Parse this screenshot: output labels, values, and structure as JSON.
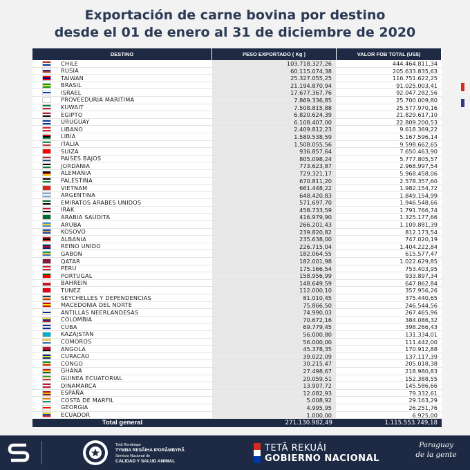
{
  "title": {
    "line1": "Exportación de carne bovina por destino",
    "line2": "desde el 01 de enero al 31 de diciembre de 2020"
  },
  "table": {
    "headers": [
      "DESTINO",
      "PESO EXPORTADO ( Kg )",
      "VALOR FOB TOTAL (US$)"
    ],
    "rows": [
      {
        "destino": "CHILE",
        "peso": "103.718.327,26",
        "valor": "444.464.811,34",
        "flag": [
          "#d52b1e",
          "#ffffff",
          "#0039a6"
        ]
      },
      {
        "destino": "RUSIA",
        "peso": "60.115.074,38",
        "valor": "205.633.835,63",
        "flag": [
          "#ffffff",
          "#0039a6",
          "#d52b1e"
        ]
      },
      {
        "destino": "TAIWAN",
        "peso": "25.327.055,25",
        "valor": "116.751.622,25",
        "flag": [
          "#fe0000",
          "#000095",
          "#fe0000"
        ]
      },
      {
        "destino": "BRASIL",
        "peso": "21.194.870,94",
        "valor": "91.025.003,41",
        "flag": [
          "#009c3b",
          "#ffdf00",
          "#009c3b"
        ]
      },
      {
        "destino": "ISRAEL",
        "peso": "17.677.367,76",
        "valor": "92.047.282,56",
        "flag": [
          "#ffffff",
          "#0038b8",
          "#ffffff"
        ]
      },
      {
        "destino": "PROVEEDURIA MARITIMA",
        "peso": "7.869.336,85",
        "valor": "25.700.009,80",
        "flag": [
          "#ffffff",
          "#ffffff",
          "#ffffff"
        ]
      },
      {
        "destino": "KUWAIT",
        "peso": "7.508.815,88",
        "valor": "25.577.970,16",
        "flag": [
          "#007a3d",
          "#ffffff",
          "#ce1126"
        ]
      },
      {
        "destino": "EGIPTO",
        "peso": "6.820.624,39",
        "valor": "21.829.617,10",
        "flag": [
          "#ce1126",
          "#ffffff",
          "#000000"
        ]
      },
      {
        "destino": "URUGUAY",
        "peso": "6.108.407,00",
        "valor": "22.809.200,53",
        "flag": [
          "#0038a8",
          "#ffffff",
          "#0038a8"
        ]
      },
      {
        "destino": "LIBANO",
        "peso": "2.409.812,23",
        "valor": "9.618.369,22",
        "flag": [
          "#ed1c24",
          "#ffffff",
          "#ed1c24"
        ]
      },
      {
        "destino": "LIBIA",
        "peso": "1.589.538,59",
        "valor": "5.167.596,14",
        "flag": [
          "#e70013",
          "#000000",
          "#239e46"
        ]
      },
      {
        "destino": "ITALIA",
        "peso": "1.508.055,56",
        "valor": "9.598.662,65",
        "flag": [
          "#009246",
          "#ffffff",
          "#ce2b37"
        ]
      },
      {
        "destino": "SUIZA",
        "peso": "936.857,64",
        "valor": "7.650.463,90",
        "flag": [
          "#ff0000",
          "#ff0000",
          "#ff0000"
        ]
      },
      {
        "destino": "PAISES BAJOS",
        "peso": "805.098,24",
        "valor": "5.777.805,57",
        "flag": [
          "#ae1c28",
          "#ffffff",
          "#21468b"
        ]
      },
      {
        "destino": "JORDANIA",
        "peso": "773.623,87",
        "valor": "2.968.997,54",
        "flag": [
          "#000000",
          "#ffffff",
          "#007a3d"
        ]
      },
      {
        "destino": "ALEMANIA",
        "peso": "729.321,17",
        "valor": "5.968.458,06",
        "flag": [
          "#000000",
          "#dd0000",
          "#ffce00"
        ]
      },
      {
        "destino": "PALESTINA",
        "peso": "670.811,20",
        "valor": "2.578.357,60",
        "flag": [
          "#000000",
          "#ffffff",
          "#009736"
        ]
      },
      {
        "destino": "VIETNAM",
        "peso": "661.448,22",
        "valor": "1.982.154,72",
        "flag": [
          "#da251d",
          "#da251d",
          "#da251d"
        ]
      },
      {
        "destino": "ARGENTINA",
        "peso": "648.420,83",
        "valor": "1.849.154,99",
        "flag": [
          "#74acdf",
          "#ffffff",
          "#74acdf"
        ]
      },
      {
        "destino": "EMIRATOS ARABES UNIDOS",
        "peso": "571.697,70",
        "valor": "1.946.548,66",
        "flag": [
          "#00732f",
          "#ffffff",
          "#000000"
        ]
      },
      {
        "destino": "IRAK",
        "peso": "458.733,59",
        "valor": "1.791.766,74",
        "flag": [
          "#ce1126",
          "#ffffff",
          "#000000"
        ]
      },
      {
        "destino": "ARABIA SAUDITA",
        "peso": "416.979,90",
        "valor": "1.325.177,66",
        "flag": [
          "#006c35",
          "#006c35",
          "#006c35"
        ]
      },
      {
        "destino": "ARUBA",
        "peso": "266.201,43",
        "valor": "1.109.881,39",
        "flag": [
          "#418fde",
          "#ffd100",
          "#418fde"
        ]
      },
      {
        "destino": "KOSOVO",
        "peso": "239.820,82",
        "valor": "812.173,54",
        "flag": [
          "#244aa5",
          "#d0a650",
          "#244aa5"
        ]
      },
      {
        "destino": "ALBANIA",
        "peso": "235.638,00",
        "valor": "747.020,19",
        "flag": [
          "#e41e20",
          "#000000",
          "#e41e20"
        ]
      },
      {
        "destino": "REINO UNIDO",
        "peso": "226.715,04",
        "valor": "1.404.222,84",
        "flag": [
          "#012169",
          "#c8102e",
          "#012169"
        ]
      },
      {
        "destino": "GABON",
        "peso": "182.064,55",
        "valor": "615.577,47",
        "flag": [
          "#009e60",
          "#fcd116",
          "#3a75c4"
        ]
      },
      {
        "destino": "QATAR",
        "peso": "182.001,98",
        "valor": "1.022.629,85",
        "flag": [
          "#8a1538",
          "#8a1538",
          "#8a1538"
        ]
      },
      {
        "destino": "PERU",
        "peso": "175.166,54",
        "valor": "753.403,95",
        "flag": [
          "#d91023",
          "#ffffff",
          "#d91023"
        ]
      },
      {
        "destino": "PORTUGAL",
        "peso": "158.956,99",
        "valor": "933.897,34",
        "flag": [
          "#006600",
          "#ff0000",
          "#ff0000"
        ]
      },
      {
        "destino": "BAHREIN",
        "peso": "148.649,59",
        "valor": "647.862,84",
        "flag": [
          "#ffffff",
          "#ce1126",
          "#ce1126"
        ]
      },
      {
        "destino": "TUNEZ",
        "peso": "112.000,10",
        "valor": "357.956,26",
        "flag": [
          "#e70013",
          "#e70013",
          "#e70013"
        ]
      },
      {
        "destino": "SEYCHELLES Y DEPENDENCIAS",
        "peso": "81.010,45",
        "valor": "375.440,65",
        "flag": [
          "#003f87",
          "#fcd856",
          "#d62828"
        ]
      },
      {
        "destino": "MACEDONIA DEL NORTE",
        "peso": "75.866,50",
        "valor": "246.544,56",
        "flag": [
          "#d20000",
          "#ffe600",
          "#d20000"
        ]
      },
      {
        "destino": "ANTILLAS NEERLANDESAS",
        "peso": "74.990,03",
        "valor": "267.465,96",
        "flag": [
          "#ffffff",
          "#012a87",
          "#ffffff"
        ]
      },
      {
        "destino": "COLOMBIA",
        "peso": "70.672,16",
        "valor": "384.086,32",
        "flag": [
          "#fcd116",
          "#003893",
          "#ce1126"
        ]
      },
      {
        "destino": "CUBA",
        "peso": "69.779,45",
        "valor": "398.266,43",
        "flag": [
          "#002a8f",
          "#ffffff",
          "#002a8f"
        ]
      },
      {
        "destino": "KAZAJSTAN",
        "peso": "56.000,80",
        "valor": "131.334,01",
        "flag": [
          "#00afca",
          "#00afca",
          "#00afca"
        ]
      },
      {
        "destino": "COMOROS",
        "peso": "56.000,00",
        "valor": "111.442,00",
        "flag": [
          "#ffc61e",
          "#ffffff",
          "#3a75c4"
        ]
      },
      {
        "destino": "ANGOLA",
        "peso": "45.378,35",
        "valor": "170.912,88",
        "flag": [
          "#cc092f",
          "#cc092f",
          "#000000"
        ]
      },
      {
        "destino": "CURACAO",
        "peso": "39.022,09",
        "valor": "137.117,39",
        "flag": [
          "#002b7f",
          "#f9e814",
          "#002b7f"
        ]
      },
      {
        "destino": "CONGO",
        "peso": "30.215,47",
        "valor": "205.018,38",
        "flag": [
          "#009543",
          "#fbde4a",
          "#dc241f"
        ]
      },
      {
        "destino": "GHANA",
        "peso": "27.498,67",
        "valor": "218.980,83",
        "flag": [
          "#ce1126",
          "#fcd116",
          "#006b3f"
        ]
      },
      {
        "destino": "GUINEA ECUATORIAL",
        "peso": "20.059,51",
        "valor": "152.388,55",
        "flag": [
          "#3e9a00",
          "#ffffff",
          "#e32118"
        ]
      },
      {
        "destino": "DINAMARCA",
        "peso": "13.907,72",
        "valor": "145.586,66",
        "flag": [
          "#c8102e",
          "#ffffff",
          "#c8102e"
        ]
      },
      {
        "destino": "ESPAÑA",
        "peso": "12.082,93",
        "valor": "79.332,61",
        "flag": [
          "#aa151b",
          "#f1bf00",
          "#aa151b"
        ]
      },
      {
        "destino": "COSTA DE MARFIL",
        "peso": "5.008,92",
        "valor": "29.163,29",
        "flag": [
          "#f77f00",
          "#ffffff",
          "#009e60"
        ]
      },
      {
        "destino": "GEORGIA",
        "peso": "4.995,95",
        "valor": "26.251,76",
        "flag": [
          "#ffffff",
          "#ff0000",
          "#ffffff"
        ]
      },
      {
        "destino": "ECUADOR",
        "peso": "1.000,00",
        "valor": "6.925,00",
        "flag": [
          "#ffdd00",
          "#034ea2",
          "#ed1c24"
        ]
      }
    ],
    "total": {
      "label": "Total general",
      "peso": "271.130.982,49",
      "valor": "1.115.553.749,18"
    }
  },
  "footer": {
    "institution_small": "Tetã Rembiapo",
    "institution_bold": "TYMBA RESÃIHA IPORÃMBYRÃ",
    "service_small": "Servicio Nacional de",
    "service_bold": "CALIDAD Y SALUD ANIMAL",
    "gov_line1": "TETÃ REKUÁI",
    "gov_line2": "GOBIERNO NACIONAL",
    "slogan_line1": "Paraguay",
    "slogan_line2": "de la gente"
  }
}
